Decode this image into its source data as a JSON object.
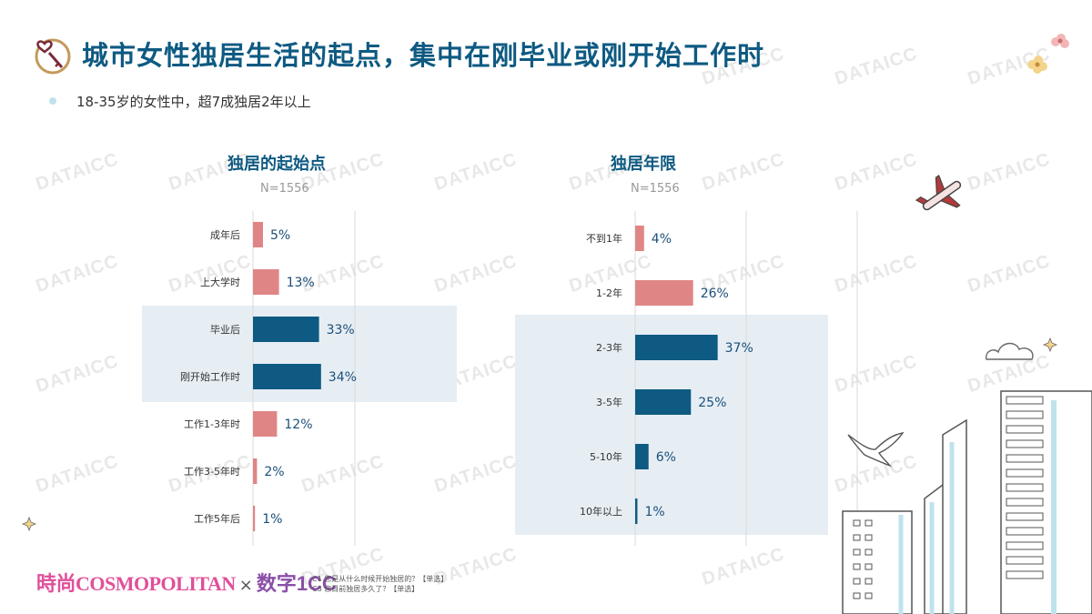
{
  "page": {
    "title": "城市女性独居生活的起点，集中在刚毕业或刚开始工作时",
    "subtitle": "18-35岁的女性中，超7成独居2年以上",
    "watermark": "DATAICC",
    "logo_main": "時尚COSMOPOLITAN",
    "logo_x": "×",
    "logo_partner": "数字1CC",
    "footnotes": [
      "C1 您是从什么时候开始独居的？【单选】",
      "C3 您目前独居多久了？【单选】"
    ]
  },
  "colors": {
    "highlight": "#0e5a82",
    "normal": "#e08585",
    "band": "#e6eef4",
    "title": "#0e5a82",
    "value_text": "#1b4f7a"
  },
  "chart_data": [
    {
      "type": "bar",
      "orientation": "horizontal",
      "title": "独居的起始点",
      "n_label": "N=1556",
      "categories": [
        "成年后",
        "上大学时",
        "毕业后",
        "刚开始工作时",
        "工作1-3年时",
        "工作3-5年时",
        "工作5年后"
      ],
      "values": [
        5,
        13,
        33,
        34,
        12,
        2,
        1
      ],
      "value_labels": [
        "5%",
        "13%",
        "33%",
        "34%",
        "12%",
        "2%",
        "1%"
      ],
      "highlighted": [
        2,
        3
      ],
      "unit": "%"
    },
    {
      "type": "bar",
      "orientation": "horizontal",
      "title": "独居年限",
      "n_label": "N=1556",
      "categories": [
        "不到1年",
        "1-2年",
        "2-3年",
        "3-5年",
        "5-10年",
        "10年以上"
      ],
      "values": [
        4,
        26,
        37,
        25,
        6,
        1
      ],
      "value_labels": [
        "4%",
        "26%",
        "37%",
        "25%",
        "6%",
        "1%"
      ],
      "highlighted": [
        2,
        3,
        4,
        5
      ],
      "unit": "%"
    }
  ]
}
